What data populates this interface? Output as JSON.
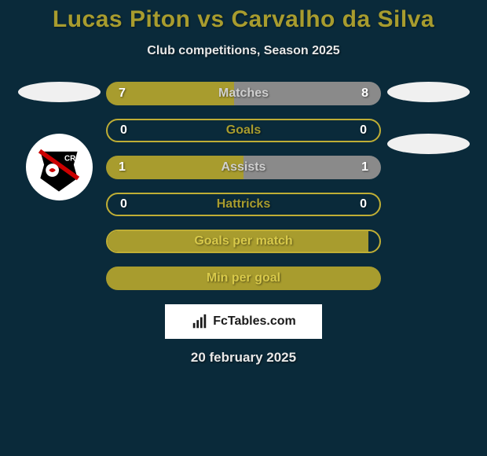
{
  "title": "Lucas Piton vs Carvalho da Silva",
  "subtitle": "Club competitions, Season 2025",
  "footer": {
    "site": "FcTables.com",
    "date": "20 february 2025"
  },
  "colors": {
    "background": "#0a2a3a",
    "title": "#a89c2e",
    "text_light": "#e8e8e8",
    "olive": "#a89c2e",
    "olive_border": "#bfae35",
    "gray": "#8a8a8a",
    "label_on_fill": "#d8d8d8"
  },
  "stats": [
    {
      "label": "Matches",
      "left_value": "7",
      "right_value": "8",
      "left_pct": 46.7,
      "left_color": "#a89c2e",
      "right_color": "#8a8a8a",
      "label_color": "#d0d0d0",
      "has_values": true
    },
    {
      "label": "Goals",
      "left_value": "0",
      "right_value": "0",
      "left_pct": 0,
      "left_color": "#a89c2e",
      "right_color": "transparent",
      "border_color": "#bfae35",
      "label_color": "#a89c2e",
      "has_values": true,
      "outlined": true
    },
    {
      "label": "Assists",
      "left_value": "1",
      "right_value": "1",
      "left_pct": 50,
      "left_color": "#a89c2e",
      "right_color": "#8a8a8a",
      "label_color": "#d0d0d0",
      "has_values": true
    },
    {
      "label": "Hattricks",
      "left_value": "0",
      "right_value": "0",
      "left_pct": 0,
      "left_color": "#a89c2e",
      "right_color": "transparent",
      "border_color": "#bfae35",
      "label_color": "#a89c2e",
      "has_values": true,
      "outlined": true
    },
    {
      "label": "Goals per match",
      "left_value": "",
      "right_value": "",
      "left_pct": 96,
      "left_color": "#a89c2e",
      "right_color": "transparent",
      "border_color": "#bfae35",
      "label_color": "#d8c94a",
      "has_values": false,
      "outlined": true
    },
    {
      "label": "Min per goal",
      "left_value": "",
      "right_value": "",
      "left_pct": 100,
      "left_color": "#a89c2e",
      "right_color": "#a89c2e",
      "label_color": "#d8c94a",
      "has_values": false
    }
  ]
}
